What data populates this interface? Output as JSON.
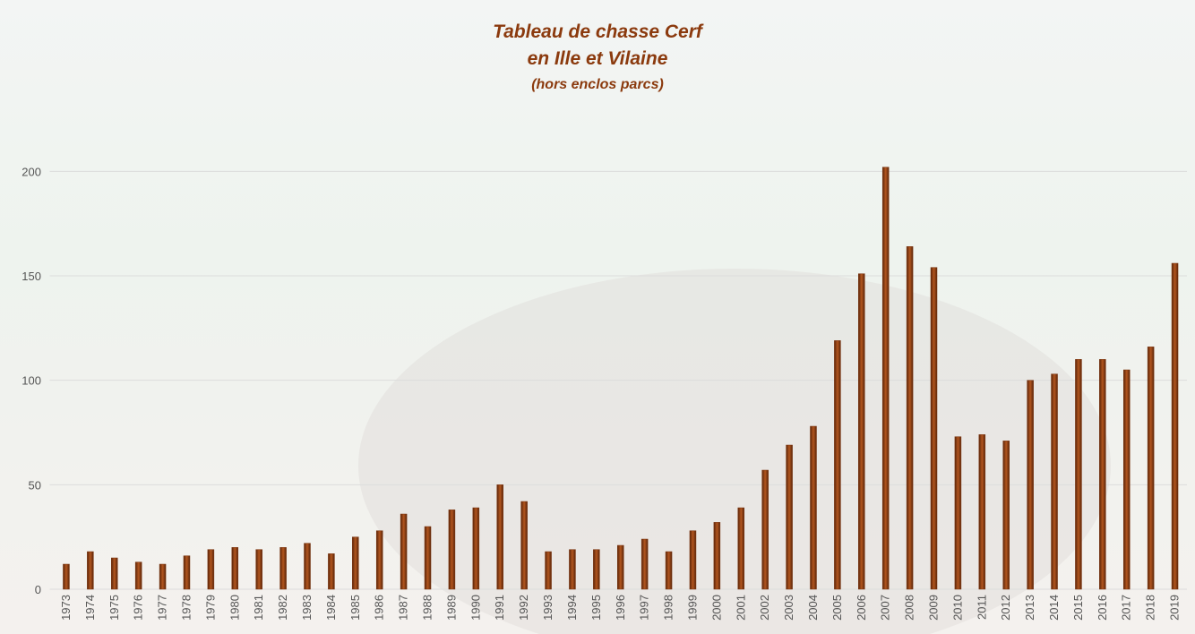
{
  "chart_data": {
    "type": "bar",
    "title": [
      "Tableau de chasse Cerf",
      "en Ille et Vilaine"
    ],
    "subtitle": "(hors enclos parcs)",
    "categories": [
      "1973",
      "1974",
      "1975",
      "1976",
      "1977",
      "1978",
      "1979",
      "1980",
      "1981",
      "1982",
      "1983",
      "1984",
      "1985",
      "1986",
      "1987",
      "1988",
      "1989",
      "1990",
      "1991",
      "1992",
      "1993",
      "1994",
      "1995",
      "1996",
      "1997",
      "1998",
      "1999",
      "2000",
      "2001",
      "2002",
      "2003",
      "2004",
      "2005",
      "2006",
      "2007",
      "2008",
      "2009",
      "2010",
      "2011",
      "2012",
      "2013",
      "2014",
      "2015",
      "2016",
      "2017",
      "2018",
      "2019"
    ],
    "values": [
      12,
      18,
      15,
      13,
      12,
      16,
      19,
      20,
      19,
      20,
      22,
      17,
      25,
      28,
      36,
      30,
      38,
      39,
      50,
      42,
      18,
      19,
      19,
      21,
      24,
      18,
      28,
      32,
      39,
      57,
      69,
      78,
      119,
      151,
      202,
      164,
      154,
      73,
      74,
      71,
      100,
      103,
      110,
      110,
      105,
      116,
      156
    ],
    "color": "#7a3410",
    "ylim": [
      0,
      225
    ],
    "yticks": [
      0,
      50,
      100,
      150,
      200
    ],
    "grid": true
  }
}
